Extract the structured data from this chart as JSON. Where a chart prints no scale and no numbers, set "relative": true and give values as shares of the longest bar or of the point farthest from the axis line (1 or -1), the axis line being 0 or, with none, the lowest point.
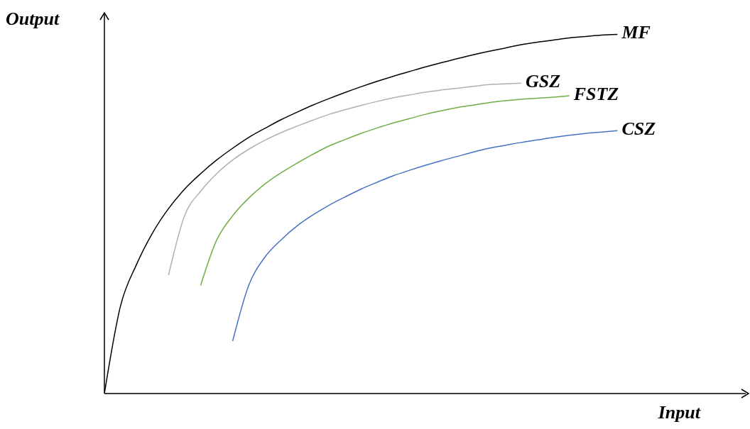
{
  "chart_data": {
    "type": "line",
    "relative": true,
    "xlabel": "Input",
    "ylabel": "Output",
    "legend": false,
    "grid": false,
    "marker": "none",
    "line_style": "solid",
    "categories": [
      null,
      null,
      null,
      null,
      null,
      null,
      null,
      null,
      null,
      null,
      null,
      null,
      null,
      null,
      null,
      null,
      null,
      null,
      null,
      null,
      null,
      null,
      null,
      null,
      null,
      null,
      null,
      null,
      null,
      null,
      null,
      null,
      null,
      null,
      null,
      null,
      null,
      null,
      null,
      null,
      null
    ],
    "series": [
      {
        "name": "MF",
        "color": "#000000",
        "values": [
          0,
          0.243,
          0.359,
          0.447,
          0.515,
          0.569,
          0.612,
          0.65,
          0.683,
          0.713,
          0.738,
          0.762,
          0.783,
          0.803,
          0.821,
          0.838,
          0.854,
          0.869,
          0.883,
          0.896,
          0.909,
          0.921,
          0.932,
          0.943,
          0.953,
          0.962,
          0.971,
          0.978,
          0.984,
          0.99,
          0.994,
          0.998,
          1,
          null,
          null,
          null,
          null,
          null,
          null,
          null,
          null
        ]
      },
      {
        "name": "GSZ",
        "color": "#b0b0b0",
        "values": [
          null,
          null,
          null,
          null,
          0.33,
          0.495,
          0.563,
          0.612,
          0.65,
          0.68,
          0.705,
          0.726,
          0.744,
          0.761,
          0.777,
          0.79,
          0.802,
          0.813,
          0.823,
          0.831,
          0.839,
          0.845,
          0.85,
          0.855,
          0.86,
          0.862,
          0.864,
          null,
          null,
          null,
          null,
          null,
          null,
          null,
          null,
          null,
          null,
          null,
          null,
          null,
          null
        ]
      },
      {
        "name": "FSTZ",
        "color": "#70ad47",
        "values": [
          null,
          null,
          null,
          null,
          null,
          null,
          0.301,
          0.427,
          0.495,
          0.544,
          0.583,
          0.614,
          0.641,
          0.666,
          0.689,
          0.707,
          0.724,
          0.739,
          0.753,
          0.765,
          0.777,
          0.787,
          0.796,
          0.803,
          0.81,
          0.815,
          0.819,
          0.822,
          0.825,
          0.829,
          null,
          null,
          null,
          null,
          null,
          null,
          null,
          null,
          null,
          null,
          null
        ]
      },
      {
        "name": "CSZ",
        "color": "#4472c4",
        "values": [
          null,
          null,
          null,
          null,
          null,
          null,
          null,
          null,
          0.146,
          0.301,
          0.379,
          0.427,
          0.466,
          0.497,
          0.524,
          0.547,
          0.569,
          0.588,
          0.606,
          0.621,
          0.635,
          0.648,
          0.66,
          0.672,
          0.683,
          0.691,
          0.699,
          0.706,
          0.713,
          0.719,
          0.724,
          0.728,
          0.732,
          null,
          null,
          null,
          null,
          null,
          null,
          null,
          null
        ]
      }
    ]
  }
}
